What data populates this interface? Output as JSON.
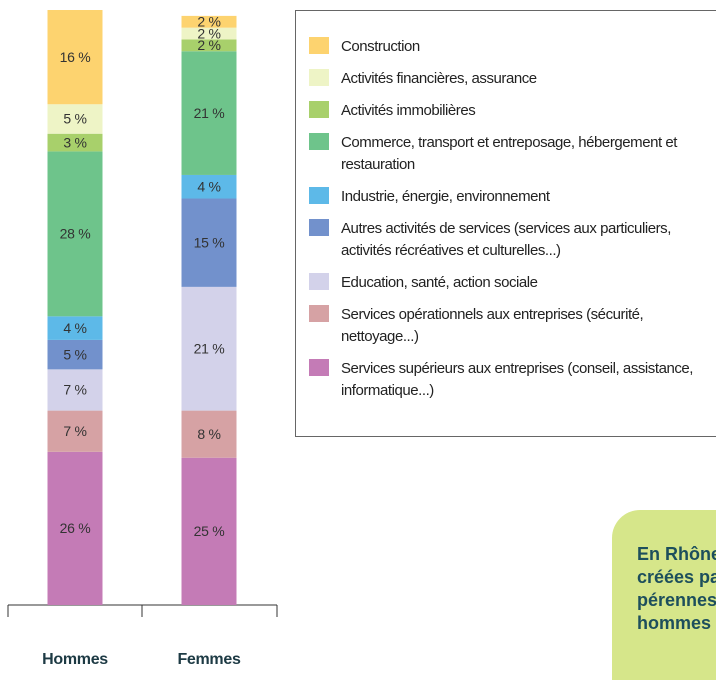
{
  "chart_data": {
    "type": "stacked_bar",
    "categories": [
      "Hommes",
      "Femmes"
    ],
    "ylim": [
      0,
      101
    ],
    "series": [
      {
        "name": "Services supérieurs aux entreprises (conseil, assistance, informatique...)",
        "color": "#c47bb6",
        "values": [
          26,
          25
        ],
        "value_labels": [
          "26 %",
          "25 %"
        ]
      },
      {
        "name": "Services opérationnels aux entreprises (sécurité, nettoyage...)",
        "color": "#d6a2a4",
        "values": [
          7,
          8
        ],
        "value_labels": [
          "7 %",
          "8 %"
        ]
      },
      {
        "name": "Education, santé, action sociale",
        "color": "#d3d2ea",
        "values": [
          7,
          21
        ],
        "value_labels": [
          "7 %",
          "21 %"
        ]
      },
      {
        "name": "Autres activités de services (services aux particuliers, activités récréatives et culturelles...)",
        "color": "#7291cc",
        "values": [
          5,
          15
        ],
        "value_labels": [
          "5 %",
          "15 %"
        ]
      },
      {
        "name": "Industrie, énergie, environnement",
        "color": "#5db9e8",
        "values": [
          4,
          4
        ],
        "value_labels": [
          "4 %",
          "4 %"
        ]
      },
      {
        "name": "Commerce, transport et entreposage, hébergement et restauration",
        "color": "#6ec48b",
        "values": [
          28,
          21
        ],
        "value_labels": [
          "28 %",
          "21 %"
        ]
      },
      {
        "name": "Activités immobilières",
        "color": "#a8d06b",
        "values": [
          3,
          2
        ],
        "value_labels": [
          "3 %",
          "2 %"
        ]
      },
      {
        "name": "Activités financières, assurance",
        "color": "#eef4c6",
        "values": [
          5,
          2
        ],
        "value_labels": [
          "5 %",
          "2 %"
        ]
      },
      {
        "name": "Construction",
        "color": "#fdd36f",
        "values": [
          16,
          2
        ],
        "value_labels": [
          "16 %",
          "2 %"
        ]
      }
    ],
    "callout": [
      "En Rhône-Alpes,",
      "créées par des fe",
      "pérennes que cel",
      "hommes"
    ]
  }
}
